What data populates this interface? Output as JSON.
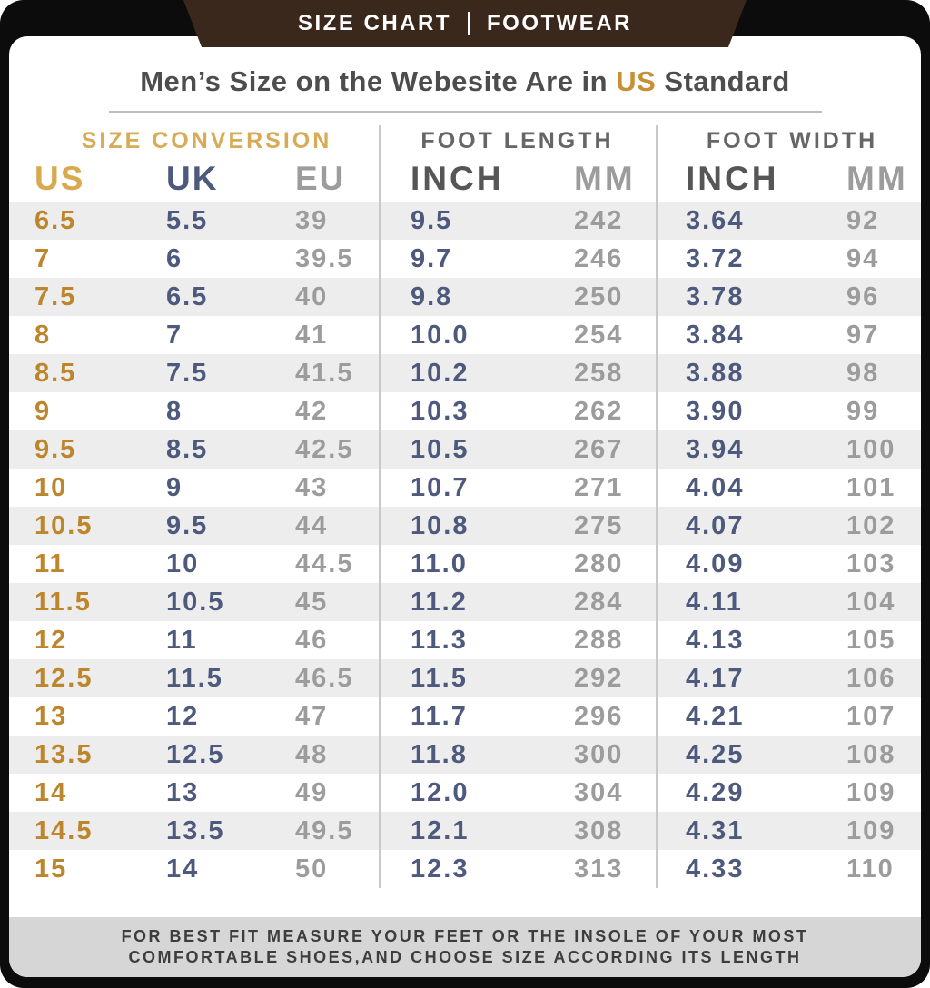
{
  "banner": {
    "left": "SIZE CHART",
    "right": "FOOTWEAR"
  },
  "title": {
    "prefix": "Men’s Size on the Webesite Are in ",
    "highlight": "US",
    "suffix": " Standard"
  },
  "colors": {
    "banner_brown": "#3a281c",
    "gold_header": "#d8ab57",
    "gold_values": "#bd862c",
    "navy_values": "#4e5a7d",
    "gray_values": "#9c9c9c",
    "title_highlight": "#c89035"
  },
  "chart_data": {
    "type": "table",
    "title": "Men's Size on the Webesite Are in US Standard",
    "column_groups": [
      {
        "label": "SIZE CONVERSION",
        "columns": [
          "US",
          "UK",
          "EU"
        ]
      },
      {
        "label": "FOOT LENGTH",
        "columns": [
          "INCH",
          "MM"
        ]
      },
      {
        "label": "FOOT WIDTH",
        "columns": [
          "INCH",
          "MM"
        ]
      }
    ],
    "rows": [
      [
        "6.5",
        "5.5",
        "39",
        "9.5",
        "242",
        "3.64",
        "92"
      ],
      [
        "7",
        "6",
        "39.5",
        "9.7",
        "246",
        "3.72",
        "94"
      ],
      [
        "7.5",
        "6.5",
        "40",
        "9.8",
        "250",
        "3.78",
        "96"
      ],
      [
        "8",
        "7",
        "41",
        "10.0",
        "254",
        "3.84",
        "97"
      ],
      [
        "8.5",
        "7.5",
        "41.5",
        "10.2",
        "258",
        "3.88",
        "98"
      ],
      [
        "9",
        "8",
        "42",
        "10.3",
        "262",
        "3.90",
        "99"
      ],
      [
        "9.5",
        "8.5",
        "42.5",
        "10.5",
        "267",
        "3.94",
        "100"
      ],
      [
        "10",
        "9",
        "43",
        "10.7",
        "271",
        "4.04",
        "101"
      ],
      [
        "10.5",
        "9.5",
        "44",
        "10.8",
        "275",
        "4.07",
        "102"
      ],
      [
        "11",
        "10",
        "44.5",
        "11.0",
        "280",
        "4.09",
        "103"
      ],
      [
        "11.5",
        "10.5",
        "45",
        "11.2",
        "284",
        "4.11",
        "104"
      ],
      [
        "12",
        "11",
        "46",
        "11.3",
        "288",
        "4.13",
        "105"
      ],
      [
        "12.5",
        "11.5",
        "46.5",
        "11.5",
        "292",
        "4.17",
        "106"
      ],
      [
        "13",
        "12",
        "47",
        "11.7",
        "296",
        "4.21",
        "107"
      ],
      [
        "13.5",
        "12.5",
        "48",
        "11.8",
        "300",
        "4.25",
        "108"
      ],
      [
        "14",
        "13",
        "49",
        "12.0",
        "304",
        "4.29",
        "109"
      ],
      [
        "14.5",
        "13.5",
        "49.5",
        "12.1",
        "308",
        "4.31",
        "109"
      ],
      [
        "15",
        "14",
        "50",
        "12.3",
        "313",
        "4.33",
        "110"
      ]
    ]
  },
  "footer": {
    "line1": "FOR BEST FIT MEASURE YOUR FEET OR THE INSOLE OF YOUR MOST",
    "line2": "COMFORTABLE SHOES,AND CHOOSE SIZE ACCORDING ITS LENGTH"
  }
}
